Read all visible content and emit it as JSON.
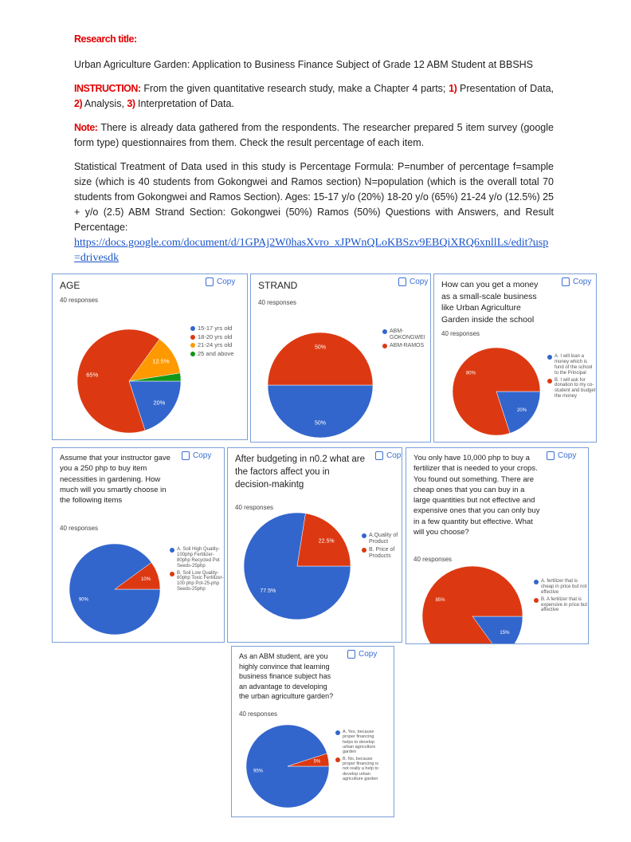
{
  "title_label": "Research title:",
  "research_title": "Urban Agriculture Garden: Application to Business Finance Subject of Grade 12 ABM Student at BBSHS",
  "instruction": {
    "label": "INSTRUCTION:",
    "parts": [
      " From the given quantitative research study, make a Chapter 4 parts; ",
      "1)",
      " Presentation of Data, ",
      "2)",
      " Analysis, ",
      "3)",
      " Interpretation of Data."
    ]
  },
  "note": {
    "label": "Note:",
    "text": " There is already data gathered from the respondents. The researcher prepared 5 item survey (google form type) questionnaires from them. Check the result percentage of each item."
  },
  "statistical": "Statistical Treatment of Data used in this study is Percentage Formula: P=number of percentage f=sample size (which is 40 students from Gokongwei and Ramos section) N=population (which is the overall total 70 students from Gokongwei and Ramos Section). Ages: 15-17 y/o (20%) 18-20 y/o (65%) 21-24 y/o (12.5%) 25 + y/o (2.5) ABM Strand Section: Gokongwei (50%) Ramos (50%) Questions with Answers, and Result Percentage:",
  "link": "https://docs.google.com/document/d/1GPAj2W0hasXvro_xJPWnQLoKBSzv9EBQiXRQ6xnllLs/edit?usp=drivesdk",
  "charts": [
    {
      "type": "pie",
      "title": "AGE",
      "responses": "40 responses",
      "copy": "Copy",
      "series": [
        {
          "name": "15-17 yrs old",
          "color": "#3366cc",
          "value": 20,
          "value_label": "20%"
        },
        {
          "name": "18-20 yrs old",
          "color": "#dc3912",
          "value": 65,
          "value_label": "65%"
        },
        {
          "name": "21-24 yrs old",
          "color": "#ff9900",
          "value": 12.5,
          "value_label": "12.5%"
        },
        {
          "name": "25 and above",
          "color": "#109618",
          "value": 2.5,
          "value_label": null
        }
      ]
    },
    {
      "type": "pie",
      "title": "STRAND",
      "responses": "40 responses",
      "copy": "Copy",
      "series": [
        {
          "name": "ABM-GOKONGWEI",
          "color": "#3366cc",
          "value": 50,
          "value_label": "50%"
        },
        {
          "name": "ABM-RAMOS",
          "color": "#dc3912",
          "value": 50,
          "value_label": "50%"
        }
      ]
    },
    {
      "type": "pie",
      "title": "How can you get a money as a small-scale business like Urban Agriculture Garden inside the school",
      "responses": "40 responses",
      "copy": "Copy",
      "series": [
        {
          "name": "A. I will loan a money which is fund of the school to the Principal",
          "color": "#3366cc",
          "value": 20,
          "value_label": "20%"
        },
        {
          "name": "B. I will ask for donation to my co-student and budget the money",
          "color": "#dc3912",
          "value": 80,
          "value_label": "80%"
        }
      ]
    },
    {
      "type": "pie",
      "title": "Assume that your instructor gave you a 250 php to buy item necessities in gardening. How much will you smartly choose in the following items",
      "responses": "40 responses",
      "copy": "Copy",
      "series": [
        {
          "name": "A. Soil High Quality-100php Fertilizer-80php Recycled Pot Seeds-25php",
          "color": "#3366cc",
          "value": 90,
          "value_label": "90%"
        },
        {
          "name": "B. Soil Low Quality-60php Toxic Fertilizer-100 php Pot-25-php Seeds-25php",
          "color": "#dc3912",
          "value": 10,
          "value_label": "10%"
        }
      ]
    },
    {
      "type": "pie",
      "title": "After budgeting in n0.2 what are the factors affect you in decision-makintg",
      "responses": "40 responses",
      "copy": "Copy",
      "series": [
        {
          "name": "A.Quality of Product",
          "color": "#3366cc",
          "value": 77.5,
          "value_label": "77.5%"
        },
        {
          "name": "B. Price of Products",
          "color": "#dc3912",
          "value": 22.5,
          "value_label": "22.5%"
        }
      ]
    },
    {
      "type": "pie",
      "title": "You only have 10,000 php to buy a fertilizer that is needed to your crops. You found out something. There are cheap ones that you can buy in a large quantities but not effective and expensive ones that  you can only buy in a few quantity but effective. What will you choose?",
      "responses": "40 responses",
      "copy": "Copy",
      "series": [
        {
          "name": "A. fertilizer that is cheap in price but not effective",
          "color": "#3366cc",
          "value": 15,
          "value_label": "15%"
        },
        {
          "name": "B. A fertilizer that is expensive in price but affective",
          "color": "#dc3912",
          "value": 85,
          "value_label": "85%"
        }
      ]
    },
    {
      "type": "pie",
      "title": "As an ABM student, are you highly convince that learning business finance subject has an advantage to developing the urban agriculture garden?",
      "responses": "40 responses",
      "copy": "Copy",
      "series": [
        {
          "name": "A. Yes, because proper financing helps to develop urban agriculture garden",
          "color": "#3366cc",
          "value": 95,
          "value_label": "95%"
        },
        {
          "name": "B. No, because proper financing is not really a help to develop urban agriculture garden",
          "color": "#dc3912",
          "value": 5,
          "value_label": "5%"
        }
      ]
    }
  ]
}
